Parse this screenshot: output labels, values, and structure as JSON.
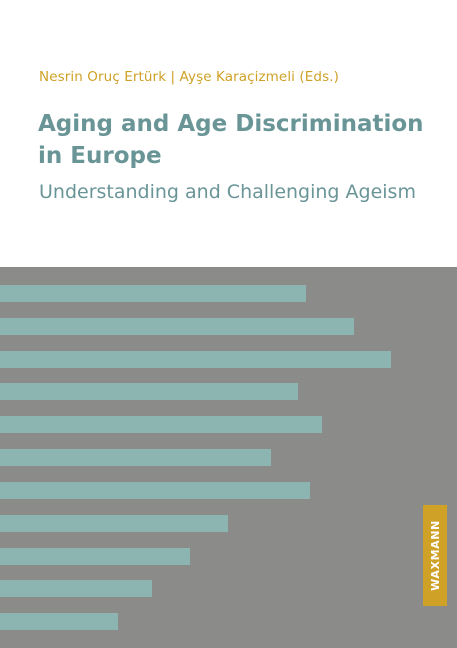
{
  "cover": {
    "editors": "Nesrin Oruç Ertürk | Ayşe Karaçizmeli (Eds.)",
    "title": "Aging and Age Discrimination in Europe",
    "subtitle": "Understanding and Challenging Ageism",
    "publisher": "WAXMANN"
  },
  "colors": {
    "accent_gold": "#cfa126",
    "title_teal": "#6a9597",
    "bar_teal": "#8cb5b2",
    "panel_gray": "#8b8b8a"
  },
  "graphic": {
    "bar_lengths": [
      0.669,
      0.775,
      0.856,
      0.652,
      0.704,
      0.593,
      0.678,
      0.499,
      0.416,
      0.333,
      0.258
    ]
  }
}
